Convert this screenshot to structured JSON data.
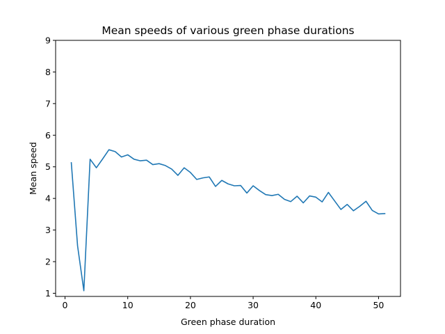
{
  "chart_data": {
    "type": "line",
    "title": "Mean speeds of various green phase durations",
    "xlabel": "Green phase duration",
    "ylabel": "Mean speed",
    "xlim": [
      -1.5,
      53.5
    ],
    "ylim": [
      0.9,
      9
    ],
    "xticks": [
      0,
      10,
      20,
      30,
      40,
      50
    ],
    "yticks": [
      1,
      2,
      3,
      4,
      5,
      6,
      7,
      8,
      9
    ],
    "grid": false,
    "line_color": "#1f77b4",
    "series": [
      {
        "x": [
          1,
          2,
          3,
          4,
          5,
          6,
          7,
          8,
          9,
          10,
          11,
          12,
          13,
          14,
          15,
          16,
          17,
          18,
          19,
          20,
          21,
          22,
          23,
          24,
          25,
          26,
          27,
          28,
          29,
          30,
          31,
          32,
          33,
          34,
          35,
          36,
          37,
          38,
          39,
          40,
          41,
          42,
          43,
          44,
          45,
          46,
          47,
          48,
          49,
          50,
          51
        ],
        "values": [
          5.13,
          2.5,
          1.08,
          5.24,
          4.97,
          5.25,
          5.54,
          5.48,
          5.31,
          5.38,
          5.24,
          5.19,
          5.21,
          5.07,
          5.1,
          5.04,
          4.93,
          4.73,
          4.97,
          4.82,
          4.6,
          4.65,
          4.68,
          4.38,
          4.57,
          4.46,
          4.4,
          4.41,
          4.17,
          4.4,
          4.25,
          4.12,
          4.09,
          4.13,
          3.97,
          3.9,
          4.07,
          3.86,
          4.08,
          4.04,
          3.89,
          4.19,
          3.92,
          3.65,
          3.81,
          3.61,
          3.75,
          3.91,
          3.62,
          3.51,
          3.52
        ]
      }
    ]
  }
}
